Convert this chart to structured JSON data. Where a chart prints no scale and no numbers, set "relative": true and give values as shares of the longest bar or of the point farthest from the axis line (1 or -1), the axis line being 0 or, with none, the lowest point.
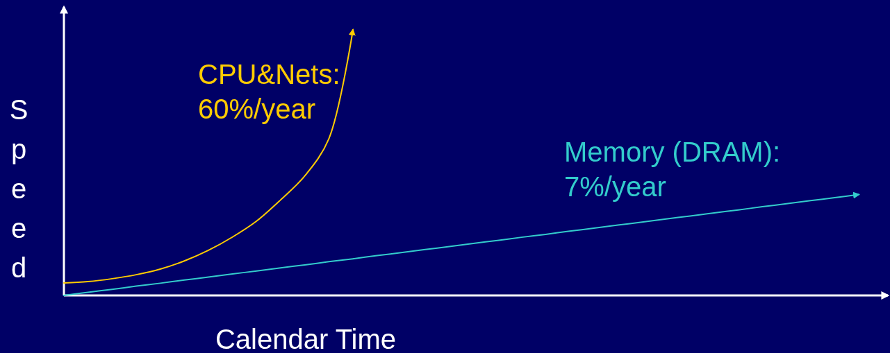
{
  "chart_data": {
    "type": "line",
    "relative": true,
    "xlabel": "Calendar Time",
    "ylabel": "Speed",
    "categories": [
      null,
      null,
      null,
      null,
      null,
      null,
      null,
      null,
      null,
      null,
      null,
      null,
      null,
      null,
      null,
      null,
      null,
      null,
      null,
      null,
      null,
      null,
      null,
      null,
      null,
      null,
      null,
      null,
      null,
      null,
      null,
      null,
      null,
      null
    ],
    "series": [
      {
        "name": "CPU&Nets:\n60%/year",
        "color": "#ffcc00",
        "values": [
          0.047,
          0.052,
          0.063,
          0.078,
          0.099,
          0.13,
          0.17,
          0.22,
          0.28,
          0.36,
          0.45,
          0.59,
          1,
          null,
          null,
          null,
          null,
          null,
          null,
          null,
          null,
          null,
          null,
          null,
          null,
          null,
          null,
          null,
          null,
          null,
          null,
          null,
          null,
          null
        ]
      },
      {
        "name": "Memory (DRAM):\n7%/year",
        "color": "#33cccc",
        "values": [
          0,
          0.012,
          0.023,
          0.035,
          0.046,
          0.058,
          0.069,
          0.081,
          0.092,
          0.104,
          0.115,
          0.127,
          0.138,
          0.15,
          0.161,
          0.173,
          0.184,
          0.196,
          0.207,
          0.219,
          0.23,
          0.242,
          0.253,
          0.265,
          0.276,
          0.288,
          0.299,
          0.311,
          0.322,
          0.334,
          0.345,
          0.357,
          0.368,
          0.38
        ]
      }
    ]
  }
}
